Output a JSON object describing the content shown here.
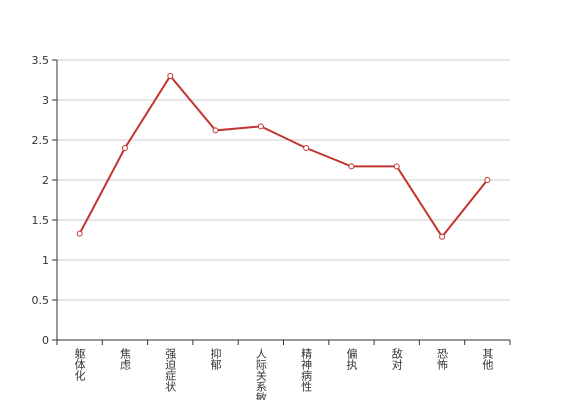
{
  "chart_data": {
    "type": "line",
    "categories": [
      "躯体化",
      "焦虑",
      "强迫症状",
      "抑郁",
      "人际关系敏感",
      "精神病性",
      "偏执",
      "敌对",
      "恐怖",
      "其他"
    ],
    "series": [
      {
        "color": "#c23531",
        "values": [
          1.33,
          2.4,
          3.3,
          2.62,
          2.67,
          2.4,
          2.17,
          2.17,
          1.29,
          2.0
        ]
      }
    ],
    "ylim": [
      0,
      3.5
    ],
    "yticks": [
      0,
      0.5,
      1,
      1.5,
      2,
      2.5,
      3,
      3.5
    ],
    "grid": true
  }
}
